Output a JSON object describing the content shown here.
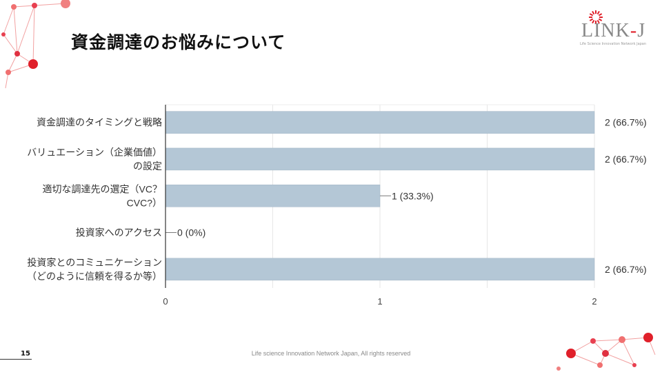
{
  "slide": {
    "title": "資金調達のお悩みについて",
    "logo_text_left": "LINK",
    "logo_dash": "-",
    "logo_text_right": "J",
    "logo_subtitle": "Life Science Innovation Network Japan",
    "page_number": "15",
    "footer": "Life science Innovation Network Japan, All rights reserved"
  },
  "colors": {
    "bar": "#b4c7d6",
    "accent": "#e0202a"
  },
  "chart_data": {
    "type": "bar",
    "orientation": "horizontal",
    "categories": [
      [
        "資金調達のタイミングと戦略"
      ],
      [
        "バリュエーション（企業価値）",
        "の設定"
      ],
      [
        "適切な調達先の選定（VC？",
        "CVC?）"
      ],
      [
        "投資家へのアクセス"
      ],
      [
        "投資家とのコミュニケーション",
        "（どのように信頼を得るか等）"
      ]
    ],
    "values": [
      2,
      2,
      1,
      0,
      2
    ],
    "data_labels": [
      "2 (66.7%)",
      "2 (66.7%)",
      "1 (33.3%)",
      "0 (0%)",
      "2 (66.7%)"
    ],
    "xlim": [
      0,
      2
    ],
    "xticks": [
      "0",
      "1",
      "2"
    ],
    "grid": true
  }
}
